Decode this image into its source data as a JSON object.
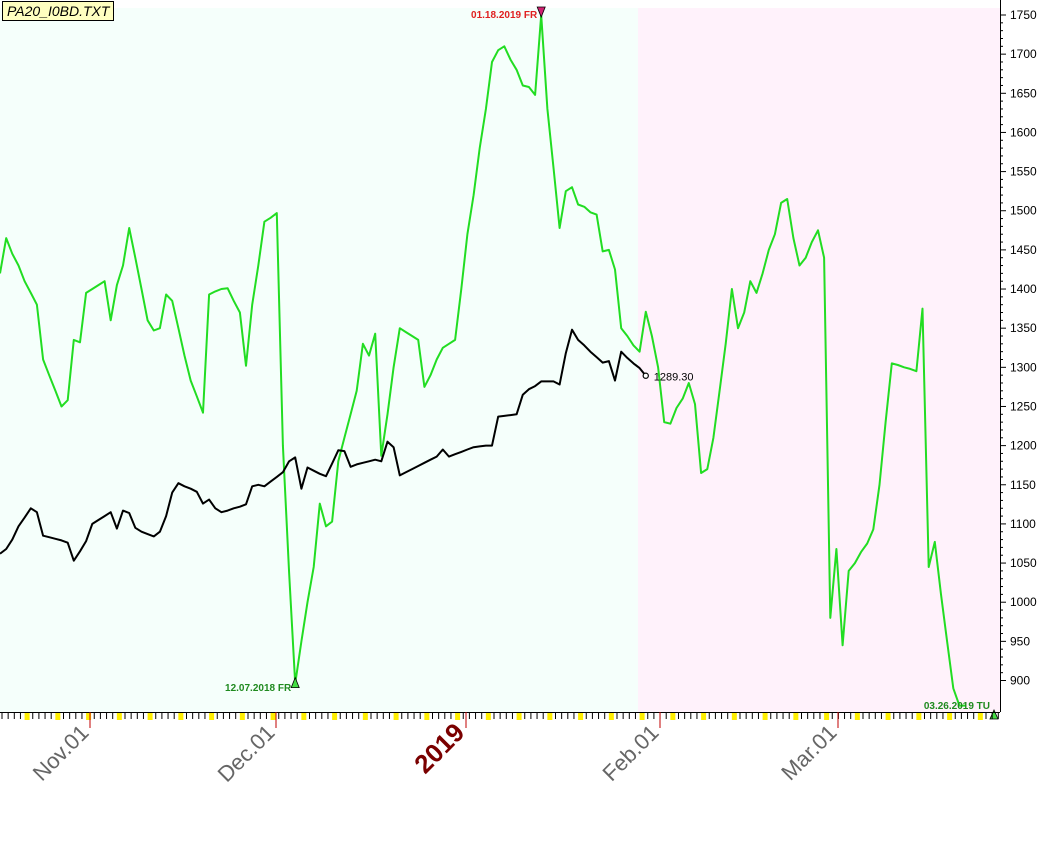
{
  "file_label": "PA20_I0BD.TXT",
  "chart_data": {
    "type": "line",
    "ylim": [
      860,
      1760
    ],
    "y_ticks": [
      900,
      950,
      1000,
      1050,
      1100,
      1150,
      1200,
      1250,
      1300,
      1350,
      1400,
      1450,
      1500,
      1550,
      1600,
      1650,
      1700,
      1750
    ],
    "y_axis_side": "right",
    "x_tick_labels": [
      {
        "label": "Nov.01",
        "year": false
      },
      {
        "label": "Dec.01",
        "year": false
      },
      {
        "label": "2019",
        "year": true
      },
      {
        "label": "Feb.01",
        "year": false
      },
      {
        "label": "Mar.01",
        "year": false
      }
    ],
    "shaded_regions": [
      {
        "name": "history",
        "color": "#f5fffb"
      },
      {
        "name": "forecast",
        "color": "#fff2fb"
      }
    ],
    "series": [
      {
        "color": "#22dd22",
        "values": [
          1420,
          1465,
          1445,
          1430,
          1410,
          1395,
          1380,
          1310,
          1290,
          1270,
          1250,
          1258,
          1335,
          1332,
          1395,
          1400,
          1405,
          1410,
          1360,
          1405,
          1430,
          1478,
          1440,
          1400,
          1360,
          1347,
          1350,
          1393,
          1385,
          1350,
          1315,
          1283,
          1263,
          1242,
          1393,
          1397,
          1400,
          1401,
          1385,
          1370,
          1302,
          1380,
          1430,
          1486,
          1491,
          1497,
          1200,
          1038,
          896,
          950,
          1000,
          1045,
          1126,
          1097,
          1103,
          1180,
          1210,
          1240,
          1270,
          1330,
          1315,
          1343,
          1187,
          1240,
          1300,
          1350,
          1345,
          1340,
          1335,
          1275,
          1290,
          1310,
          1325,
          1330,
          1335,
          1400,
          1470,
          1520,
          1580,
          1630,
          1690,
          1705,
          1710,
          1693,
          1680,
          1660,
          1658,
          1648,
          1750,
          1630,
          1555,
          1478,
          1525,
          1530,
          1508,
          1505,
          1498,
          1495,
          1448,
          1450,
          1425,
          1350,
          1340,
          1328,
          1320,
          1371,
          1340,
          1300,
          1230,
          1228,
          1248,
          1260,
          1280,
          1253,
          1165,
          1170,
          1210,
          1270,
          1330,
          1400,
          1350,
          1370,
          1410,
          1395,
          1420,
          1450,
          1470,
          1510,
          1515,
          1465,
          1430,
          1440,
          1460,
          1475,
          1440,
          980,
          1068,
          945,
          1040,
          1050,
          1064,
          1075,
          1093,
          1150,
          1230,
          1305,
          1303,
          1300,
          1298,
          1295,
          1375,
          1045,
          1077,
          1010,
          950,
          890,
          868,
          868
        ]
      },
      {
        "color": "#000000",
        "values": [
          1062,
          1068,
          1080,
          1097,
          1108,
          1120,
          1115,
          1085,
          1083,
          1081,
          1079,
          1076,
          1053,
          1065,
          1078,
          1100,
          1105,
          1110,
          1115,
          1094,
          1117,
          1114,
          1095,
          1090,
          1087,
          1084,
          1090,
          1110,
          1140,
          1152,
          1148,
          1145,
          1141,
          1126,
          1131,
          1120,
          1115,
          1117,
          1120,
          1122,
          1125,
          1148,
          1150,
          1148,
          1154,
          1160,
          1166,
          1180,
          1185,
          1145,
          1172,
          1168,
          1164,
          1161,
          1177,
          1194,
          1193,
          1173,
          1176,
          1178,
          1180,
          1182,
          1180,
          1205,
          1198,
          1162,
          1166,
          1170,
          1174,
          1178,
          1182,
          1186,
          1195,
          1186,
          1189,
          1192,
          1195,
          1198,
          1199,
          1200,
          1200,
          1237,
          1238,
          1239,
          1240,
          1265,
          1272,
          1276,
          1282,
          1282,
          1282,
          1278,
          1318,
          1348,
          1335,
          1328,
          1320,
          1313,
          1306,
          1308,
          1283,
          1320,
          1312,
          1305,
          1299,
          1289.3
        ]
      }
    ],
    "annotations": [
      {
        "text": "01.18.2019 FR",
        "color": "#e02020"
      },
      {
        "text": "12.07.2018 FR",
        "color": "#1f8a1f"
      },
      {
        "text": "03.26.2019 TU",
        "color": "#1f8a1f"
      },
      {
        "text": "1289.30",
        "color": "#000000"
      }
    ]
  }
}
